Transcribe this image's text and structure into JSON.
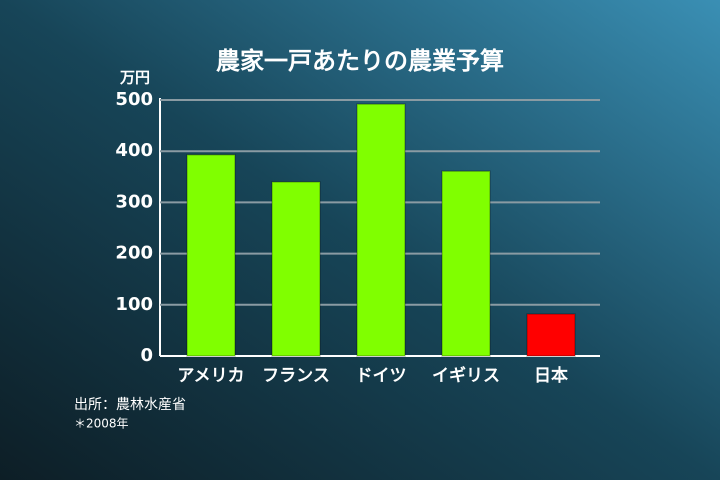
{
  "chart_data": {
    "type": "bar",
    "title": "農家一戸あたりの農業予算",
    "y_unit": "万円",
    "categories": [
      "アメリカ",
      "フランス",
      "ドイツ",
      "イギリス",
      "日本"
    ],
    "values": [
      393,
      340,
      492,
      361,
      82
    ],
    "colors": [
      "#80ff00",
      "#80ff00",
      "#80ff00",
      "#80ff00",
      "#ff0000"
    ],
    "ylim": [
      0,
      500
    ],
    "yticks": [
      0,
      100,
      200,
      300,
      400,
      500
    ],
    "grid": true,
    "annotations": [
      "出所：農林水産省",
      "＊2008年"
    ]
  }
}
